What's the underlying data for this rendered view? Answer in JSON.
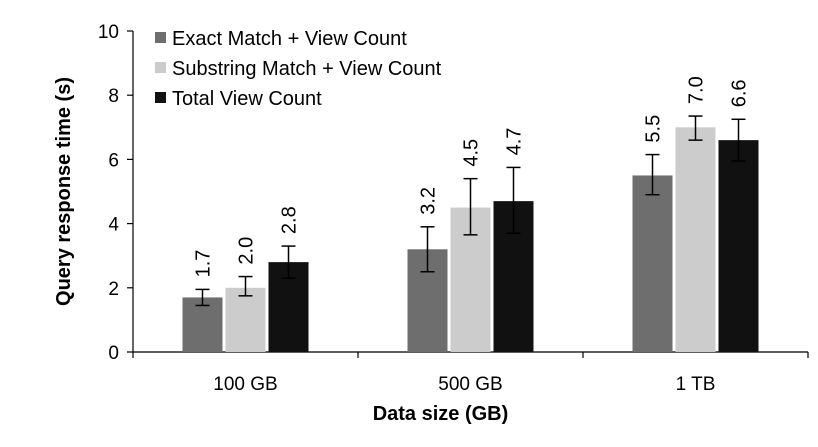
{
  "chart_data": {
    "type": "bar",
    "title": "",
    "xlabel": "Data size (GB)",
    "ylabel": "Query response time (s)",
    "categories": [
      "100 GB",
      "500 GB",
      "1 TB"
    ],
    "ylim": [
      0,
      10
    ],
    "yticks": [
      "0",
      "2",
      "4",
      "6",
      "8",
      "10"
    ],
    "grid": false,
    "legend_position": "top-left",
    "series": [
      {
        "name": "Exact Match + View Count",
        "color": "#6e6e6e",
        "values": [
          1.7,
          3.2,
          5.5
        ],
        "labels": [
          "1.7",
          "3.2",
          "5.5"
        ],
        "error_low": [
          1.45,
          2.5,
          4.9
        ],
        "error_high": [
          1.95,
          3.9,
          6.15
        ]
      },
      {
        "name": "Substring Match + View Count",
        "color": "#cccccc",
        "values": [
          2.0,
          4.5,
          7.0
        ],
        "labels": [
          "2.0",
          "4.5",
          "7.0"
        ],
        "error_low": [
          1.75,
          3.65,
          6.6
        ],
        "error_high": [
          2.35,
          5.4,
          7.35
        ]
      },
      {
        "name": "Total View Count",
        "color": "#111111",
        "values": [
          2.8,
          4.7,
          6.6
        ],
        "labels": [
          "2.8",
          "4.7",
          "6.6"
        ],
        "error_low": [
          2.3,
          3.7,
          5.95
        ],
        "error_high": [
          3.3,
          5.75,
          7.25
        ]
      }
    ]
  }
}
